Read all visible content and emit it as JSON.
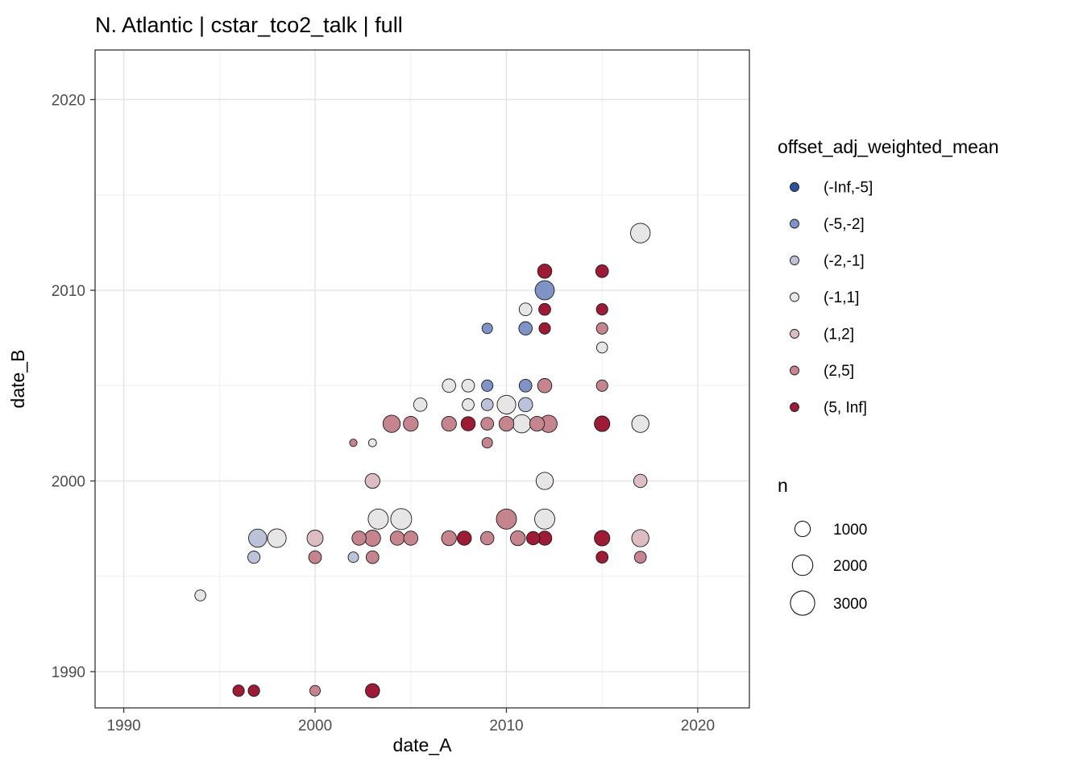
{
  "title": "N. Atlantic | cstar_tco2_talk | full",
  "chart_data": {
    "type": "scatter",
    "title": "N. Atlantic | cstar_tco2_talk | full",
    "xlabel": "date_A",
    "ylabel": "date_B",
    "xlim": [
      1988.5,
      2022.7
    ],
    "ylim": [
      1988.1,
      2022.6
    ],
    "x_ticks": [
      1990,
      2000,
      2010,
      2020
    ],
    "y_ticks": [
      1990,
      2000,
      2010,
      2020
    ],
    "minor_ticks": [
      1995,
      2005,
      2015
    ],
    "grid": true,
    "legend_position": "right",
    "color_legend": {
      "title": "offset_adj_weighted_mean",
      "bins": [
        {
          "label": "(-Inf,-5]",
          "color": "#2a52a0"
        },
        {
          "label": "(-5,-2]",
          "color": "#7f93c6"
        },
        {
          "label": "(-2,-1]",
          "color": "#bcc2da"
        },
        {
          "label": "(-1,1]",
          "color": "#e7e5e5"
        },
        {
          "label": "(1,2]",
          "color": "#dcbdc2"
        },
        {
          "label": "(2,5]",
          "color": "#c5848e"
        },
        {
          "label": "(5, Inf]",
          "color": "#9e1b36"
        }
      ]
    },
    "size_legend": {
      "title": "n",
      "entries": [
        1000,
        2000,
        3000
      ]
    },
    "points": [
      {
        "x": 1994,
        "y": 1994,
        "bin": "(-1,1]",
        "n": 400
      },
      {
        "x": 1996,
        "y": 1989,
        "bin": "(5, Inf]",
        "n": 450
      },
      {
        "x": 1996.8,
        "y": 1989,
        "bin": "(5, Inf]",
        "n": 450
      },
      {
        "x": 2000,
        "y": 1989,
        "bin": "(2,5]",
        "n": 350
      },
      {
        "x": 2003,
        "y": 1989,
        "bin": "(5, Inf]",
        "n": 800
      },
      {
        "x": 1996.8,
        "y": 1996,
        "bin": "(-2,-1]",
        "n": 550
      },
      {
        "x": 1997,
        "y": 1997,
        "bin": "(-2,-1]",
        "n": 1500
      },
      {
        "x": 1998,
        "y": 1997,
        "bin": "(-1,1]",
        "n": 1600
      },
      {
        "x": 2000,
        "y": 1997,
        "bin": "(1,2]",
        "n": 1100
      },
      {
        "x": 2000,
        "y": 1996,
        "bin": "(2,5]",
        "n": 600
      },
      {
        "x": 2002,
        "y": 1996,
        "bin": "(-2,-1]",
        "n": 350
      },
      {
        "x": 2002.3,
        "y": 1997,
        "bin": "(2,5]",
        "n": 800
      },
      {
        "x": 2003,
        "y": 1997,
        "bin": "(2,5]",
        "n": 1100
      },
      {
        "x": 2003,
        "y": 1996,
        "bin": "(2,5]",
        "n": 600
      },
      {
        "x": 2003.3,
        "y": 1998,
        "bin": "(-1,1]",
        "n": 1900
      },
      {
        "x": 2004.5,
        "y": 1998,
        "bin": "(-1,1]",
        "n": 2100
      },
      {
        "x": 2004.3,
        "y": 1997,
        "bin": "(2,5]",
        "n": 800
      },
      {
        "x": 2005,
        "y": 1997,
        "bin": "(2,5]",
        "n": 800
      },
      {
        "x": 2007,
        "y": 1997,
        "bin": "(2,5]",
        "n": 900
      },
      {
        "x": 2007.8,
        "y": 1997,
        "bin": "(5, Inf]",
        "n": 800
      },
      {
        "x": 2009,
        "y": 1997,
        "bin": "(2,5]",
        "n": 700
      },
      {
        "x": 2010,
        "y": 1998,
        "bin": "(2,5]",
        "n": 1900
      },
      {
        "x": 2010.6,
        "y": 1997,
        "bin": "(2,5]",
        "n": 900
      },
      {
        "x": 2011.4,
        "y": 1997,
        "bin": "(5, Inf]",
        "n": 700
      },
      {
        "x": 2012,
        "y": 1998,
        "bin": "(-1,1]",
        "n": 1900
      },
      {
        "x": 2012,
        "y": 1997,
        "bin": "(5, Inf]",
        "n": 800
      },
      {
        "x": 2015,
        "y": 1997,
        "bin": "(5, Inf]",
        "n": 1000
      },
      {
        "x": 2015,
        "y": 1996,
        "bin": "(5, Inf]",
        "n": 500
      },
      {
        "x": 2017,
        "y": 1997,
        "bin": "(1,2]",
        "n": 1300
      },
      {
        "x": 2017,
        "y": 1996,
        "bin": "(2,5]",
        "n": 500
      },
      {
        "x": 2003,
        "y": 2000,
        "bin": "(1,2]",
        "n": 900
      },
      {
        "x": 2012,
        "y": 2000,
        "bin": "(-1,1]",
        "n": 1300
      },
      {
        "x": 2017,
        "y": 2000,
        "bin": "(1,2]",
        "n": 700
      },
      {
        "x": 2002,
        "y": 2002,
        "bin": "(2,5]",
        "n": 120
      },
      {
        "x": 2003,
        "y": 2002,
        "bin": "(-1,1]",
        "n": 150
      },
      {
        "x": 2009,
        "y": 2002,
        "bin": "(2,5]",
        "n": 350
      },
      {
        "x": 2004,
        "y": 2003,
        "bin": "(2,5]",
        "n": 1300
      },
      {
        "x": 2005,
        "y": 2003,
        "bin": "(2,5]",
        "n": 900
      },
      {
        "x": 2007,
        "y": 2003,
        "bin": "(2,5]",
        "n": 900
      },
      {
        "x": 2008,
        "y": 2003,
        "bin": "(5, Inf]",
        "n": 800
      },
      {
        "x": 2009,
        "y": 2003,
        "bin": "(2,5]",
        "n": 600
      },
      {
        "x": 2010,
        "y": 2003,
        "bin": "(2,5]",
        "n": 900
      },
      {
        "x": 2010.8,
        "y": 2003,
        "bin": "(-1,1]",
        "n": 1500
      },
      {
        "x": 2011.6,
        "y": 2003,
        "bin": "(2,5]",
        "n": 900
      },
      {
        "x": 2012.2,
        "y": 2003,
        "bin": "(2,5]",
        "n": 1300
      },
      {
        "x": 2015,
        "y": 2003,
        "bin": "(5, Inf]",
        "n": 1000
      },
      {
        "x": 2017,
        "y": 2003,
        "bin": "(-1,1]",
        "n": 1300
      },
      {
        "x": 2005.5,
        "y": 2004,
        "bin": "(-1,1]",
        "n": 700
      },
      {
        "x": 2008,
        "y": 2004,
        "bin": "(-1,1]",
        "n": 500
      },
      {
        "x": 2009,
        "y": 2004,
        "bin": "(-2,-1]",
        "n": 500
      },
      {
        "x": 2010,
        "y": 2004,
        "bin": "(-1,1]",
        "n": 1600
      },
      {
        "x": 2011,
        "y": 2004,
        "bin": "(-2,-1]",
        "n": 800
      },
      {
        "x": 2007,
        "y": 2005,
        "bin": "(-1,1]",
        "n": 700
      },
      {
        "x": 2008,
        "y": 2005,
        "bin": "(-1,1]",
        "n": 600
      },
      {
        "x": 2009,
        "y": 2005,
        "bin": "(-5,-2]",
        "n": 450
      },
      {
        "x": 2011,
        "y": 2005,
        "bin": "(-5,-2]",
        "n": 600
      },
      {
        "x": 2012,
        "y": 2005,
        "bin": "(2,5]",
        "n": 800
      },
      {
        "x": 2015,
        "y": 2005,
        "bin": "(2,5]",
        "n": 450
      },
      {
        "x": 2009,
        "y": 2008,
        "bin": "(-5,-2]",
        "n": 350
      },
      {
        "x": 2011,
        "y": 2008,
        "bin": "(-5,-2]",
        "n": 700
      },
      {
        "x": 2011,
        "y": 2009,
        "bin": "(-1,1]",
        "n": 600
      },
      {
        "x": 2012,
        "y": 2010,
        "bin": "(-5,-2]",
        "n": 1700
      },
      {
        "x": 2012,
        "y": 2011,
        "bin": "(5, Inf]",
        "n": 800
      },
      {
        "x": 2012,
        "y": 2009,
        "bin": "(5, Inf]",
        "n": 500
      },
      {
        "x": 2012,
        "y": 2008,
        "bin": "(5, Inf]",
        "n": 450
      },
      {
        "x": 2015,
        "y": 2011,
        "bin": "(5, Inf]",
        "n": 600
      },
      {
        "x": 2015,
        "y": 2009,
        "bin": "(5, Inf]",
        "n": 450
      },
      {
        "x": 2015,
        "y": 2008,
        "bin": "(2,5]",
        "n": 450
      },
      {
        "x": 2015,
        "y": 2007,
        "bin": "(-1,1]",
        "n": 400
      },
      {
        "x": 2017,
        "y": 2013,
        "bin": "(-1,1]",
        "n": 1800
      }
    ]
  }
}
